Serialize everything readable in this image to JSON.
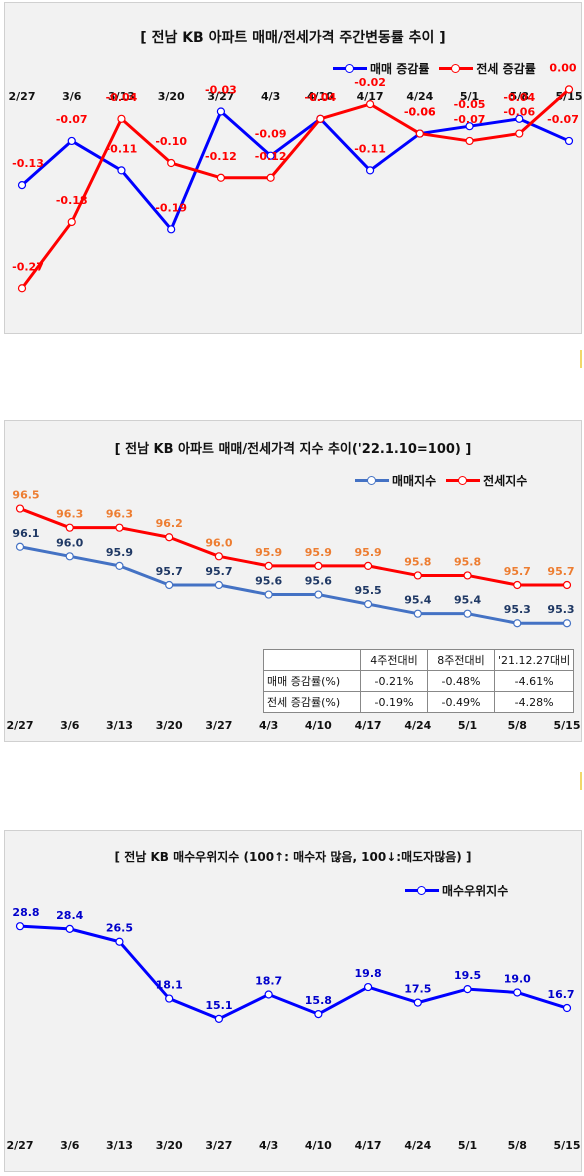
{
  "chart_data": [
    {
      "type": "line",
      "title": "[ 전남 KB 아파트 매매/전세가격 주간변동률 추이 ]",
      "categories": [
        "2/27",
        "3/6",
        "3/13",
        "3/20",
        "3/27",
        "4/3",
        "4/10",
        "4/17",
        "4/24",
        "5/1",
        "5/8",
        "5/15"
      ],
      "series": [
        {
          "name": "매매 증감률",
          "color": "#0000ff",
          "label_color": "#ff0000",
          "values": [
            -0.13,
            -0.07,
            -0.11,
            -0.19,
            -0.03,
            -0.09,
            -0.04,
            -0.11,
            -0.06,
            -0.05,
            -0.04,
            -0.07
          ]
        },
        {
          "name": "전세 증감률",
          "color": "#ff0000",
          "label_color": "#ff0000",
          "values": [
            -0.27,
            -0.18,
            -0.04,
            -0.1,
            -0.12,
            -0.12,
            -0.04,
            -0.02,
            -0.06,
            -0.07,
            -0.06,
            0.0
          ]
        }
      ],
      "ylim": [
        -0.29,
        0.01
      ]
    },
    {
      "type": "line",
      "title": "[ 전남 KB 아파트 매매/전세가격 지수 추이('22.1.10=100) ]",
      "categories": [
        "2/27",
        "3/6",
        "3/13",
        "3/20",
        "3/27",
        "4/3",
        "4/10",
        "4/17",
        "4/24",
        "5/1",
        "5/8",
        "5/15"
      ],
      "series": [
        {
          "name": "매매지수",
          "color": "#4472c4",
          "label_color": "#1f3864",
          "values": [
            96.1,
            96.0,
            95.9,
            95.7,
            95.7,
            95.6,
            95.6,
            95.5,
            95.4,
            95.4,
            95.3,
            95.3
          ]
        },
        {
          "name": "전세지수",
          "color": "#ff0000",
          "label_color": "#ed7d31",
          "values": [
            96.5,
            96.3,
            96.3,
            96.2,
            96.0,
            95.9,
            95.9,
            95.9,
            95.8,
            95.8,
            95.7,
            95.7
          ]
        }
      ],
      "ylim": [
        94.8,
        96.6
      ],
      "table": {
        "headers": [
          "",
          "4주전대비",
          "8주전대비",
          "'21.12.27대비"
        ],
        "rows": [
          [
            "매매 증감률(%)",
            "-0.21%",
            "-0.48%",
            "-4.61%"
          ],
          [
            "전세 증감률(%)",
            "-0.19%",
            "-0.49%",
            "-4.28%"
          ]
        ]
      }
    },
    {
      "type": "line",
      "title": "[ 전남 KB 매수우위지수 (100↑: 매수자 많음, 100↓:매도자많음) ]",
      "categories": [
        "2/27",
        "3/6",
        "3/13",
        "3/20",
        "3/27",
        "4/3",
        "4/10",
        "4/17",
        "4/24",
        "5/1",
        "5/8",
        "5/15"
      ],
      "series": [
        {
          "name": "매수우위지수",
          "color": "#0000ff",
          "label_color": "#0000cc",
          "values": [
            28.8,
            28.4,
            26.5,
            18.1,
            15.1,
            18.7,
            15.8,
            19.8,
            17.5,
            19.5,
            19.0,
            16.7
          ]
        }
      ],
      "ylim": [
        0,
        34
      ]
    }
  ]
}
